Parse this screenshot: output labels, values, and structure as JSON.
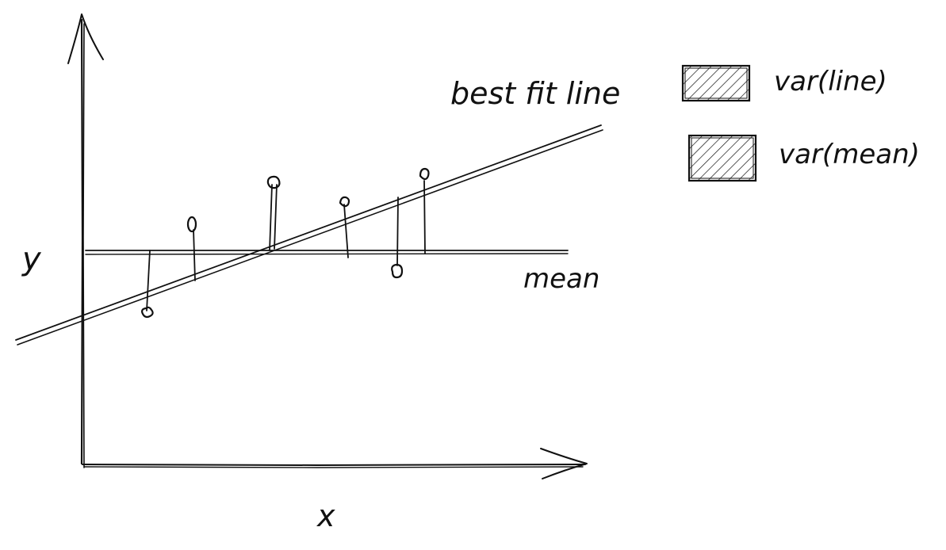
{
  "diagram": {
    "axis_labels": {
      "x": "x",
      "y": "y"
    },
    "line_labels": {
      "best_fit": "best fit line",
      "mean": "mean"
    },
    "legend": [
      {
        "label": "var(line)",
        "swatch": "hatched"
      },
      {
        "label": "var(mean)",
        "swatch": "hatched"
      }
    ],
    "ink_color": "#111111",
    "data_points_count": 6
  }
}
